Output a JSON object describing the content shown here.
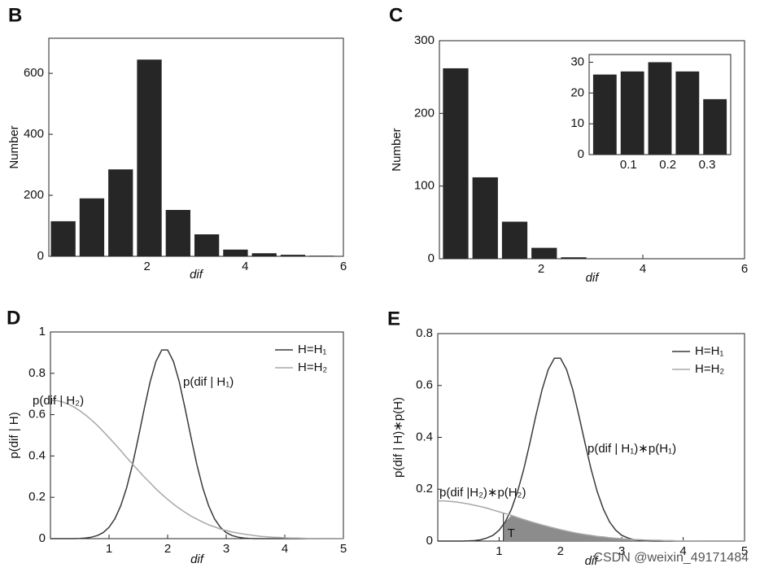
{
  "chart_data": [
    {
      "panel": "B",
      "type": "histogram",
      "ylabel": "Number",
      "xlabel": "dif",
      "bins": [
        0,
        0.585,
        1.17,
        1.755,
        2.34,
        2.925,
        3.51,
        4.095,
        4.68,
        5.265,
        5.85
      ],
      "values": [
        115,
        190,
        285,
        645,
        152,
        72,
        22,
        10,
        5,
        2
      ],
      "color": "#262626",
      "xlim": [
        0,
        6
      ],
      "xticks": [
        2,
        4,
        6
      ],
      "ylim": [
        0,
        715
      ],
      "yticks": [
        0,
        200,
        400,
        600
      ]
    },
    {
      "panel": "C",
      "type": "histogram",
      "ylabel": "Number",
      "xlabel": "dif",
      "bins": [
        0.03,
        0.61,
        1.19,
        1.77,
        2.35,
        2.93
      ],
      "values": [
        262,
        112,
        51,
        15,
        2
      ],
      "color": "#262626",
      "xlim": [
        0,
        6
      ],
      "xticks": [
        2,
        4,
        6
      ],
      "ylim": [
        0,
        300
      ],
      "yticks": [
        0,
        100,
        200,
        300
      ]
    },
    {
      "type": "histogram",
      "bins": [
        0.005,
        0.075,
        0.145,
        0.215,
        0.285,
        0.355
      ],
      "values": [
        26,
        27,
        30,
        27,
        18
      ],
      "color": "#262626",
      "xlim": [
        0,
        0.36
      ],
      "xticks": [
        0.1,
        0.2,
        0.3
      ],
      "ylim": [
        0,
        32.5
      ],
      "yticks": [
        0,
        10,
        20,
        30
      ]
    },
    {
      "panel": "D",
      "type": "line",
      "ylabel": "p(dif | H)",
      "xlabel": "dif",
      "legend": "northeast",
      "x": [
        0,
        0.1,
        0.2,
        0.3,
        0.4,
        0.5,
        0.6,
        0.7,
        0.8,
        0.9,
        1,
        1.1,
        1.2,
        1.3,
        1.4,
        1.5,
        1.6,
        1.7,
        1.8,
        1.9,
        2,
        2.1,
        2.2,
        2.3,
        2.4,
        2.5,
        2.6,
        2.7,
        2.8,
        2.9,
        3,
        3.1,
        3.2,
        3.3,
        3.4,
        3.5,
        3.6,
        3.7,
        3.8,
        3.9,
        4,
        4.1,
        4.2,
        4.3,
        4.4,
        4.5,
        4.6,
        4.7,
        4.8,
        4.9,
        5
      ],
      "series": [
        {
          "name": "H=H₁",
          "color": "#3a3a3a",
          "values": [
            0,
            0,
            0,
            0,
            0,
            0.001,
            0.003,
            0.007,
            0.015,
            0.029,
            0.055,
            0.096,
            0.159,
            0.246,
            0.357,
            0.489,
            0.627,
            0.757,
            0.857,
            0.913,
            0.913,
            0.857,
            0.757,
            0.627,
            0.489,
            0.357,
            0.246,
            0.159,
            0.096,
            0.055,
            0.029,
            0.015,
            0.007,
            0.003,
            0.001,
            0,
            0,
            0,
            0,
            0,
            0,
            0,
            0,
            0,
            0,
            0,
            0,
            0,
            0,
            0,
            0
          ]
        },
        {
          "name": "H=H₂",
          "color": "#a8a8a8",
          "values": [
            0.67,
            0.668,
            0.662,
            0.651,
            0.637,
            0.619,
            0.598,
            0.574,
            0.548,
            0.519,
            0.489,
            0.458,
            0.426,
            0.393,
            0.361,
            0.33,
            0.299,
            0.27,
            0.241,
            0.215,
            0.19,
            0.167,
            0.146,
            0.127,
            0.109,
            0.094,
            0.08,
            0.067,
            0.057,
            0.047,
            0.039,
            0.032,
            0.027,
            0.022,
            0.018,
            0.014,
            0.011,
            0.009,
            0.007,
            0.006,
            0.004,
            0.003,
            0.003,
            0.002,
            0.001,
            0.001,
            0,
            0,
            0,
            0,
            0
          ]
        }
      ],
      "annotations": [
        "p(dif | H₂)",
        "p(dif | H₁)"
      ],
      "xlim": [
        0,
        5
      ],
      "xticks": [
        1,
        2,
        3,
        4,
        5
      ],
      "ylim": [
        0,
        1
      ],
      "yticks": [
        0,
        0.2,
        0.4,
        0.6,
        0.8,
        1
      ]
    },
    {
      "panel": "E",
      "type": "line",
      "ylabel": "p(dif | H)∗p(H)",
      "xlabel": "dif",
      "legend": "northeast",
      "x": [
        0,
        0.1,
        0.2,
        0.3,
        0.4,
        0.5,
        0.6,
        0.7,
        0.8,
        0.9,
        1,
        1.1,
        1.2,
        1.3,
        1.4,
        1.5,
        1.6,
        1.7,
        1.8,
        1.9,
        2,
        2.1,
        2.2,
        2.3,
        2.4,
        2.5,
        2.6,
        2.7,
        2.8,
        2.9,
        3,
        3.1,
        3.2,
        3.3,
        3.4,
        3.5,
        3.6,
        3.7,
        3.8,
        3.9,
        4,
        4.1,
        4.2,
        4.3,
        4.4,
        4.5,
        4.6,
        4.7,
        4.8,
        4.9,
        5
      ],
      "series": [
        {
          "name": "H=H₁",
          "color": "#3a3a3a",
          "values": [
            0,
            0,
            0,
            0,
            0,
            0.001,
            0.002,
            0.005,
            0.012,
            0.022,
            0.042,
            0.074,
            0.123,
            0.19,
            0.276,
            0.377,
            0.484,
            0.584,
            0.661,
            0.705,
            0.705,
            0.661,
            0.584,
            0.484,
            0.377,
            0.276,
            0.19,
            0.123,
            0.074,
            0.042,
            0.022,
            0.012,
            0.005,
            0.002,
            0.001,
            0,
            0,
            0,
            0,
            0,
            0,
            0,
            0,
            0,
            0,
            0,
            0,
            0,
            0,
            0,
            0
          ]
        },
        {
          "name": "H=H₂",
          "color": "#a8a8a8",
          "values": [
            0.155,
            0.155,
            0.153,
            0.151,
            0.147,
            0.143,
            0.138,
            0.133,
            0.127,
            0.12,
            0.113,
            0.106,
            0.099,
            0.091,
            0.083,
            0.076,
            0.069,
            0.062,
            0.056,
            0.05,
            0.044,
            0.039,
            0.034,
            0.029,
            0.025,
            0.022,
            0.018,
            0.016,
            0.013,
            0.011,
            0.009,
            0.007,
            0.006,
            0.005,
            0.004,
            0.003,
            0.003,
            0.002,
            0.002,
            0.001,
            0.001,
            0.001,
            0.001,
            0,
            0,
            0,
            0,
            0,
            0,
            0,
            0
          ]
        }
      ],
      "threshold": {
        "label": "T",
        "value": 1.07
      },
      "shade_color": "#8c8c8c",
      "annotations": [
        "p(dif | H₁)∗p(H₁)",
        "p(dif |H₂)∗p(H₂)"
      ],
      "xlim": [
        0,
        5
      ],
      "xticks": [
        1,
        2,
        3,
        4,
        5
      ],
      "ylim": [
        0,
        0.8
      ],
      "yticks": [
        0,
        0.2,
        0.4,
        0.6,
        0.8
      ]
    }
  ],
  "watermark": "CSDN @weixin_49171484"
}
